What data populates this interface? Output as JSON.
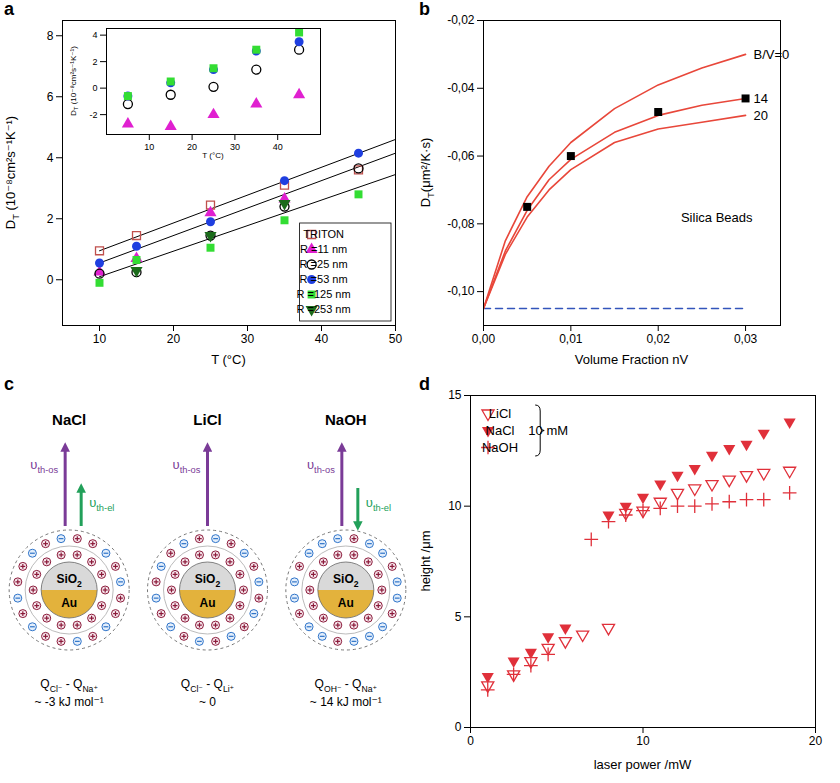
{
  "chart_data": [
    {
      "panel": "a",
      "type": "scatter",
      "x_label": [
        "T (°C)"
      ],
      "y_label": [
        "D",
        "T",
        " (10⁻⁸cm²s⁻¹K⁻¹)"
      ],
      "xlim": [
        5,
        50
      ],
      "xticks": [
        10,
        20,
        30,
        40,
        50
      ],
      "ylim": [
        -1.5,
        8.5
      ],
      "yticks": [
        0,
        2,
        4,
        6,
        8
      ],
      "x": [
        10,
        15,
        25,
        35,
        45
      ],
      "series": [
        {
          "name": "TRITON",
          "color": "#c0504d",
          "marker": "square-open",
          "values": [
            0.95,
            1.45,
            2.45,
            3.1,
            3.6
          ]
        },
        {
          "name": "R =11 nm",
          "color": "#e020d0",
          "marker": "triangle",
          "values": [
            0.25,
            0.7,
            2.2,
            2.65,
            null
          ]
        },
        {
          "name": "R =25 nm",
          "color": "#000000",
          "marker": "circle-open",
          "values": [
            0.2,
            0.25,
            1.45,
            2.4,
            3.65
          ]
        },
        {
          "name": "R =53 nm",
          "color": "#1f3fe0",
          "marker": "circle",
          "values": [
            0.55,
            1.1,
            1.9,
            3.25,
            4.15
          ]
        },
        {
          "name": "R =125 nm",
          "color": "#33dd33",
          "marker": "square",
          "values": [
            -0.1,
            0.65,
            1.05,
            1.95,
            2.8
          ]
        },
        {
          "name": "R =253 nm",
          "color": "#1b6b1b",
          "marker": "triangle-down",
          "values": [
            null,
            0.3,
            1.45,
            2.5,
            null
          ]
        }
      ],
      "lines": [
        {
          "x": [
            10,
            50
          ],
          "values": [
            0.95,
            4.6
          ],
          "color": "#000000"
        },
        {
          "x": [
            10,
            50
          ],
          "values": [
            0.55,
            4.15
          ],
          "color": "#000000"
        },
        {
          "x": [
            10,
            50
          ],
          "values": [
            0.1,
            3.45
          ],
          "color": "#000000"
        }
      ],
      "legend": "bottom-right",
      "inset": {
        "type": "scatter",
        "x_label": [
          "T (°C)"
        ],
        "y_label": [
          "D",
          "T",
          " (10⁻⁸cm²s⁻¹K⁻¹)"
        ],
        "xlim": [
          0,
          50
        ],
        "xticks": [
          10,
          20,
          30,
          40
        ],
        "ylim": [
          -3.5,
          4.5
        ],
        "yticks": [
          -2,
          0,
          2,
          4
        ],
        "x": [
          5,
          15,
          25,
          35,
          45
        ],
        "series": [
          {
            "name": "R =11 nm",
            "color": "#e020d0",
            "marker": "triangle",
            "values": [
              -2.7,
              -2.9,
              -2.0,
              -1.2,
              -0.5
            ]
          },
          {
            "name": "R =25 nm",
            "color": "#000000",
            "marker": "circle-open",
            "values": [
              -1.2,
              -0.5,
              0.1,
              1.4,
              2.9
            ]
          },
          {
            "name": "R =53 nm",
            "color": "#1f3fe0",
            "marker": "circle",
            "values": [
              -0.6,
              0.4,
              1.4,
              2.8,
              3.5
            ]
          },
          {
            "name": "R =125 nm",
            "color": "#33dd33",
            "marker": "square",
            "values": [
              -0.6,
              0.5,
              1.5,
              2.9,
              4.2
            ]
          }
        ]
      }
    },
    {
      "panel": "b",
      "type": "line",
      "x_label": [
        "Volume Fraction nV"
      ],
      "y_label": [
        "D",
        "T",
        "(μm²/K·s)"
      ],
      "xlim": [
        0,
        0.034
      ],
      "xticks": [
        {
          "value": 0,
          "label": "0,00"
        },
        {
          "value": 0.01,
          "label": "0,01"
        },
        {
          "value": 0.02,
          "label": "0,02"
        },
        {
          "value": 0.03,
          "label": "0,03"
        }
      ],
      "ylim": [
        -0.11,
        -0.02
      ],
      "yticks": [
        {
          "value": -0.1,
          "label": "-0,10"
        },
        {
          "value": -0.08,
          "label": "-0,08"
        },
        {
          "value": -0.06,
          "label": "-0,06"
        },
        {
          "value": -0.04,
          "label": "-0,04"
        },
        {
          "value": -0.02,
          "label": "-0,02"
        }
      ],
      "x": [
        0,
        0.0025,
        0.005,
        0.0075,
        0.01,
        0.015,
        0.02,
        0.025,
        0.03
      ],
      "series": [
        {
          "name": "B/V=0",
          "color": "#e8473a",
          "values": [
            -0.105,
            -0.085,
            -0.072,
            -0.063,
            -0.056,
            -0.046,
            -0.039,
            -0.034,
            -0.03
          ]
        },
        {
          "name": "14",
          "color": "#e8473a",
          "values": [
            -0.105,
            -0.088,
            -0.076,
            -0.067,
            -0.061,
            -0.053,
            -0.048,
            -0.045,
            -0.043
          ]
        },
        {
          "name": "20",
          "color": "#e8473a",
          "values": [
            -0.105,
            -0.089,
            -0.078,
            -0.07,
            -0.064,
            -0.056,
            -0.052,
            -0.05,
            -0.048
          ]
        }
      ],
      "points": {
        "x": [
          0.005,
          0.01,
          0.02,
          0.03
        ],
        "values": [
          -0.075,
          -0.06,
          -0.047,
          -0.043
        ],
        "color": "#000000",
        "marker": "square"
      },
      "reference_line": {
        "x": [
          0,
          0.03
        ],
        "values": [
          -0.105,
          -0.105
        ],
        "color": "#3355bb",
        "line_style": "dashed"
      },
      "annotations": [
        "Silica Beads"
      ]
    },
    {
      "panel": "c",
      "type": "diagram",
      "particles": [
        {
          "title": "NaCl",
          "core": [
            [
              "SiO",
              "2"
            ],
            [
              "Au"
            ]
          ],
          "arrows": [
            {
              "label": [
                "υ",
                "th-os"
              ],
              "color": "#7a3b97",
              "direction": "up"
            },
            {
              "label": [
                "υ",
                "th-el"
              ],
              "color": "#22a05a",
              "direction": "up"
            }
          ],
          "caption": [
            "Q",
            "Cl⁻",
            " - Q",
            "Na⁺",
            " ~ -3 kJ mol⁻¹"
          ]
        },
        {
          "title": "LiCl",
          "core": [
            [
              "SiO",
              "2"
            ],
            [
              "Au"
            ]
          ],
          "arrows": [
            {
              "label": [
                "υ",
                "th-os"
              ],
              "color": "#7a3b97",
              "direction": "up"
            }
          ],
          "caption": [
            "Q",
            "Cl⁻",
            " - Q",
            "Li⁺",
            " ~ 0"
          ]
        },
        {
          "title": "NaOH",
          "core": [
            [
              "SiO",
              "2"
            ],
            [
              "Au"
            ]
          ],
          "arrows": [
            {
              "label": [
                "υ",
                "th-os"
              ],
              "color": "#7a3b97",
              "direction": "up"
            },
            {
              "label": [
                "υ",
                "th-el"
              ],
              "color": "#22a05a",
              "direction": "down"
            }
          ],
          "caption": [
            "Q",
            "OH⁻",
            " - Q",
            "Na⁺",
            " ~ 14 kJ mol⁻¹"
          ]
        }
      ]
    },
    {
      "panel": "d",
      "type": "scatter",
      "x_label": [
        "laser power /mW"
      ],
      "y_label": [
        "height /μm"
      ],
      "xlim": [
        0,
        20
      ],
      "xticks": [
        0,
        10,
        20
      ],
      "ylim": [
        0,
        15
      ],
      "yticks": [
        0,
        5,
        10,
        15
      ],
      "series": [
        {
          "name": "LiCl",
          "color": "#e0303a",
          "marker": "triangle-down-open",
          "x": [
            1,
            2.5,
            3.5,
            4.5,
            5.5,
            6.5,
            8,
            9,
            10,
            11,
            12,
            13,
            14,
            15,
            16,
            17,
            18.5
          ],
          "values": [
            1.9,
            2.4,
            3.0,
            3.6,
            3.9,
            4.2,
            4.5,
            9.7,
            9.8,
            10.2,
            10.6,
            10.8,
            11.0,
            11.2,
            11.4,
            11.5,
            11.6
          ]
        },
        {
          "name": "NaCl",
          "color": "#e0303a",
          "marker": "triangle-down",
          "x": [
            1,
            2.5,
            3.5,
            4.5,
            5.5,
            8,
            9,
            10,
            11,
            12,
            13,
            14,
            15,
            16,
            17,
            18.5
          ],
          "values": [
            2.3,
            3.0,
            3.4,
            4.1,
            4.5,
            9.6,
            10.0,
            10.4,
            11.0,
            11.4,
            11.7,
            12.3,
            12.6,
            12.8,
            13.3,
            13.8
          ]
        },
        {
          "name": "NaOH",
          "color": "#e0303a",
          "marker": "plus",
          "x": [
            1,
            2.5,
            3.5,
            4.5,
            7,
            8,
            9,
            10,
            11,
            12,
            13,
            14,
            15,
            16,
            17,
            18.5
          ],
          "values": [
            1.7,
            2.4,
            2.8,
            3.3,
            8.5,
            9.3,
            9.6,
            9.8,
            9.9,
            10.0,
            10.0,
            10.1,
            10.2,
            10.3,
            10.3,
            10.6
          ]
        }
      ],
      "legend": "top-left",
      "annotations": [
        "10 mM"
      ]
    }
  ]
}
